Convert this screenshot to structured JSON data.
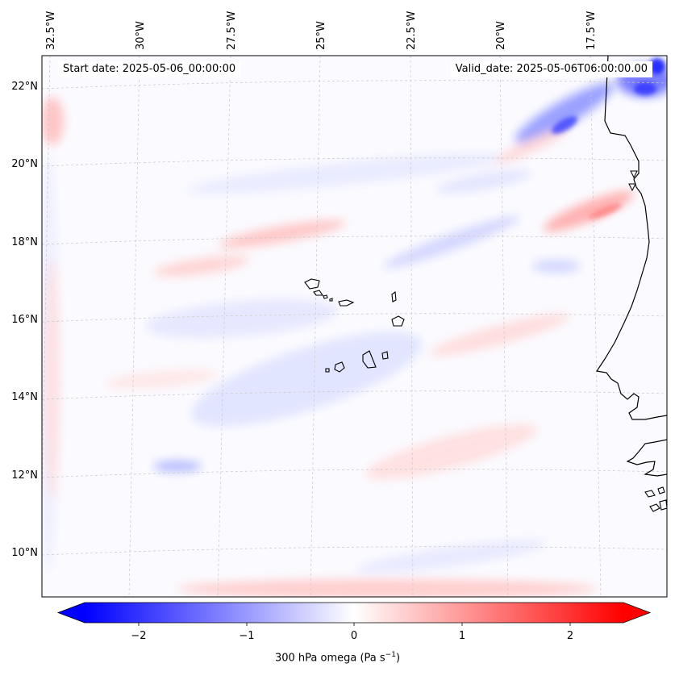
{
  "header": {
    "start_date": "Start date: 2025-05-06_00:00:00",
    "valid_date": "Valid_date: 2025-05-06T06:00:00.00"
  },
  "map": {
    "lon_labels": [
      "32.5°W",
      "30°W",
      "27.5°W",
      "25°W",
      "22.5°W",
      "20°W",
      "17.5°W"
    ],
    "lat_labels": [
      "22°N",
      "20°N",
      "18°N",
      "16°N",
      "14°N",
      "12°N",
      "10°N"
    ],
    "gridlines": true,
    "coastline_color": "#000000"
  },
  "colorbar": {
    "ticks": [
      "−2",
      "−1",
      "0",
      "1",
      "2"
    ],
    "label_prefix": "300 hPa omega (Pa s",
    "label_sup": "−1",
    "label_suffix": ")",
    "min_color": "#0000ff",
    "mid_color": "#ffffff",
    "max_color": "#ff0000",
    "extend": "both"
  }
}
